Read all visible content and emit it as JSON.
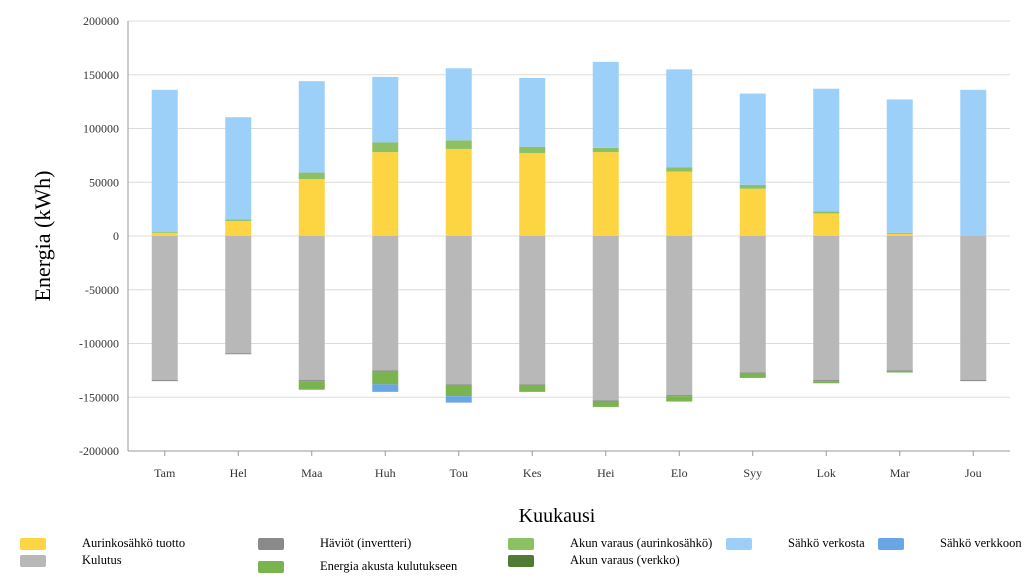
{
  "chart_data": {
    "type": "bar",
    "stacked": true,
    "xlabel": "Kuukausi",
    "ylabel": "Energia (kWh)",
    "ylim": [
      -200000,
      200000
    ],
    "yticks": [
      200000,
      150000,
      100000,
      50000,
      0,
      -50000,
      -100000,
      -150000,
      -200000
    ],
    "grid": true,
    "legend_position": "bottom",
    "categories": [
      "Tam",
      "Hel",
      "Maa",
      "Huh",
      "Tou",
      "Kes",
      "Hei",
      "Elo",
      "Syy",
      "Lok",
      "Mar",
      "Jou"
    ],
    "series": [
      {
        "name": "Aurinkosähkö tuotto",
        "color": "#fdd542",
        "values": [
          3000,
          14000,
          53000,
          78000,
          81000,
          77000,
          78000,
          60000,
          44000,
          21000,
          2000,
          0
        ]
      },
      {
        "name": "Akun varaus (aurinkosähkö)",
        "color": "#8dc062",
        "values": [
          1000,
          1500,
          6000,
          9000,
          8000,
          6000,
          4000,
          4000,
          3500,
          2000,
          1000,
          0
        ]
      },
      {
        "name": "Sähkö verkosta",
        "color": "#9dd0f8",
        "values": [
          132000,
          95000,
          85000,
          61000,
          67000,
          64000,
          80000,
          91000,
          85000,
          114000,
          124000,
          136000
        ]
      },
      {
        "name": "Kulutus",
        "color": "#b8b8b8",
        "values": [
          -134000,
          -109000,
          -134000,
          -125000,
          -138000,
          -138000,
          -153000,
          -148000,
          -127000,
          -134000,
          -125000,
          -134000
        ]
      },
      {
        "name": "Häviöt (invertteri)",
        "color": "#8a8a8a",
        "values": [
          -1000,
          -1000,
          -1000,
          -1000,
          -1000,
          -1000,
          -1000,
          -1000,
          -1000,
          -1000,
          -1000,
          -1000
        ]
      },
      {
        "name": "Energia akusta kulutukseen",
        "color": "#79b44e",
        "values": [
          0,
          0,
          -8000,
          -12000,
          -10000,
          -6000,
          -5000,
          -5000,
          -4000,
          -2000,
          -1000,
          0
        ]
      },
      {
        "name": "Akun varaus (verkko)",
        "color": "#517a34",
        "values": [
          0,
          0,
          0,
          0,
          0,
          0,
          0,
          0,
          0,
          0,
          0,
          0
        ]
      },
      {
        "name": "Sähkö verkkoon",
        "color": "#6aa6e6",
        "values": [
          0,
          0,
          0,
          -7000,
          -6000,
          0,
          0,
          0,
          0,
          0,
          0,
          0
        ]
      }
    ],
    "legend": [
      {
        "name": "Aurinkosähkö tuotto",
        "color": "#fdd542"
      },
      {
        "name": "Kulutus",
        "color": "#b8b8b8"
      },
      {
        "name": "Häviöt (invertteri)",
        "color": "#8a8a8a"
      },
      {
        "name": "Energia akusta kulutukseen",
        "color": "#79b44e"
      },
      {
        "name": "Akun varaus (aurinkosähkö)",
        "color": "#8dc062"
      },
      {
        "name": "Akun varaus (verkko)",
        "color": "#517a34"
      },
      {
        "name": "Sähkö verkosta",
        "color": "#9dd0f8"
      },
      {
        "name": "Sähkö verkkoon",
        "color": "#6aa6e6"
      }
    ]
  }
}
